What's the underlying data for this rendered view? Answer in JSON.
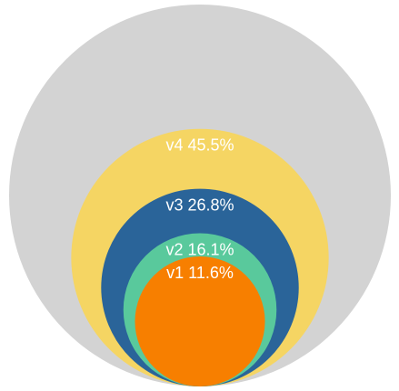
{
  "chart_data": {
    "type": "nested-circles",
    "total_label": "",
    "circles": [
      {
        "name": "v4",
        "value": 45.5,
        "label": "v4 45.5%",
        "color": "#f5d563"
      },
      {
        "name": "v3",
        "value": 26.8,
        "label": "v3 26.8%",
        "color": "#2a6499"
      },
      {
        "name": "v2",
        "value": 16.1,
        "label": "v2 16.1%",
        "color": "#59c99c"
      },
      {
        "name": "v1",
        "value": 11.6,
        "label": "v1 11.6%",
        "color": "#f77f00"
      }
    ],
    "background_color": "#d3d3d3"
  }
}
